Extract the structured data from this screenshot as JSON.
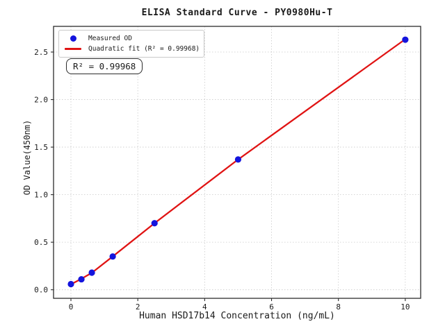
{
  "chart_data": {
    "type": "scatter",
    "title": "ELISA Standard Curve - PY0980Hu-T",
    "xlabel": "Human HSD17b14 Concentration (ng/mL)",
    "ylabel": "OD Value(450nm)",
    "xlim": [
      -0.52,
      10.46
    ],
    "ylim": [
      -0.09,
      2.77
    ],
    "xticks": [
      0,
      2,
      4,
      6,
      8,
      10
    ],
    "xtick_labels": [
      "0",
      "2",
      "4",
      "6",
      "8",
      "10"
    ],
    "yticks": [
      0,
      0.5,
      1,
      1.5,
      2,
      2.5
    ],
    "ytick_labels": [
      "0.0",
      "0.5",
      "1.0",
      "1.5",
      "2.0",
      "2.5"
    ],
    "grid": true,
    "grid_color": "#c9c9c9",
    "frame_color": "#2b2b2b",
    "series": [
      {
        "name": "Measured OD",
        "type": "scatter",
        "marker": "circle",
        "color": "#1414dd",
        "x": [
          0,
          0.313,
          0.625,
          1.25,
          2.5,
          5,
          10
        ],
        "y": [
          0.06,
          0.11,
          0.18,
          0.35,
          0.7,
          1.37,
          2.63
        ]
      },
      {
        "name": "Quadratic fit",
        "type": "line",
        "color": "#e01313",
        "line_width": 2.3,
        "x": [
          0,
          0.313,
          0.625,
          1.25,
          2.5,
          5,
          10
        ],
        "y": [
          0.057,
          0.115,
          0.178,
          0.35,
          0.7,
          1.37,
          2.635
        ]
      }
    ],
    "legend": {
      "position": "upper-left",
      "items": [
        {
          "label": "Measured OD",
          "marker": "circle",
          "color": "#1414dd"
        },
        {
          "label": "Quadratic fit (R² = 0.99968)",
          "marker": "line",
          "color": "#e01313"
        }
      ]
    },
    "annotation": {
      "text": "R² = 0.99968"
    }
  }
}
